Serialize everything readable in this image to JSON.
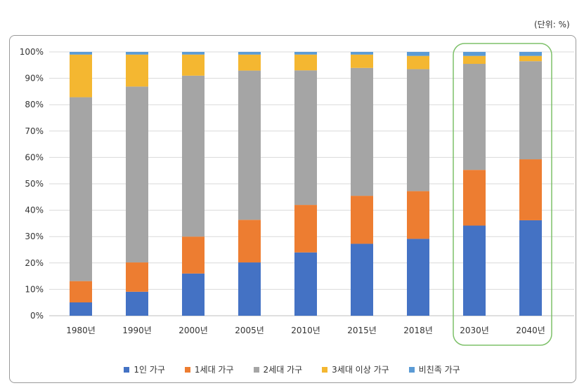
{
  "unit_label": "(단위: %)",
  "chart_data": {
    "type": "bar",
    "stacked": true,
    "categories": [
      "1980년",
      "1990년",
      "2000년",
      "2005년",
      "2010년",
      "2015년",
      "2018년",
      "2030년",
      "2040년"
    ],
    "ylim": [
      0,
      100
    ],
    "yticks": [
      "0%",
      "10%",
      "20%",
      "30%",
      "40%",
      "50%",
      "60%",
      "70%",
      "80%",
      "90%",
      "100%"
    ],
    "grid": true,
    "legend_position": "bottom",
    "highlighted_categories": [
      "2030년",
      "2040년"
    ],
    "highlight_color": "#7dc069",
    "series": [
      {
        "name": "1인 가구",
        "color": "#4472c4",
        "values": [
          5,
          9,
          16,
          20,
          24,
          27,
          29,
          34,
          36
        ]
      },
      {
        "name": "1세대 가구",
        "color": "#ed7d31",
        "values": [
          8,
          11,
          14,
          16,
          18,
          18,
          18,
          21,
          23
        ]
      },
      {
        "name": "2세대 가구",
        "color": "#a5a5a5",
        "values": [
          69,
          66,
          61,
          56,
          51,
          48,
          46,
          40,
          37
        ]
      },
      {
        "name": "3세대 이상 가구",
        "color": "#f4b731",
        "values": [
          16,
          12,
          8,
          6,
          6,
          5,
          5,
          3,
          2
        ]
      },
      {
        "name": "비친족 가구",
        "color": "#5b9bd5",
        "values": [
          1,
          1,
          1,
          1,
          1,
          1,
          1.5,
          1.5,
          1.5
        ]
      }
    ]
  }
}
